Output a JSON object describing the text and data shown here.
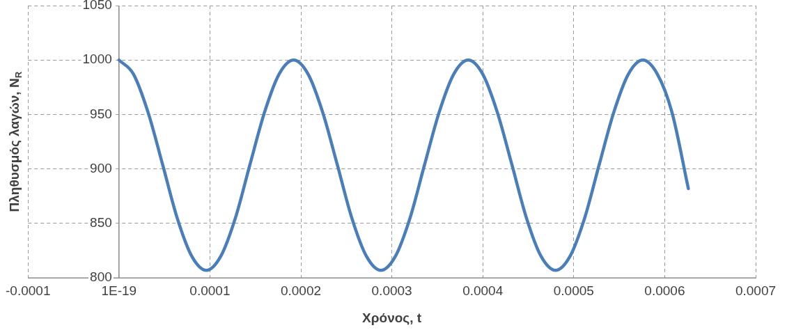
{
  "chart_data": {
    "type": "line",
    "xlabel": "Χρόνος, t",
    "ylabel": "Πληθυσμός λαγών, N$_{R}$",
    "x": [
      0,
      1.6e-05,
      3.2e-05,
      4.8e-05,
      6.4e-05,
      8e-05,
      9.6e-05,
      0.000112,
      0.000128,
      0.000144,
      0.00016,
      0.000176,
      0.000192,
      0.000208,
      0.000224,
      0.00024,
      0.000256,
      0.000272,
      0.000288,
      0.000304,
      0.00032,
      0.000336,
      0.000352,
      0.000368,
      0.000384,
      0.0004,
      0.000416,
      0.000432,
      0.000448,
      0.000464,
      0.00048,
      0.000496,
      0.000512,
      0.000528,
      0.000544,
      0.00056,
      0.000576,
      0.000592,
      0.000608,
      0.000626
    ],
    "series": [
      {
        "color": "#4a7ebb",
        "values": [
          1000,
          987,
          952,
          904,
          855,
          820,
          807,
          820,
          855,
          904,
          952,
          987,
          1000,
          987,
          952,
          904,
          855,
          820,
          807,
          820,
          855,
          904,
          952,
          987,
          1000,
          987,
          952,
          904,
          855,
          820,
          807,
          820,
          855,
          904,
          952,
          987,
          1000,
          987,
          952,
          882
        ]
      }
    ],
    "xlim": [
      -0.0001,
      0.0007
    ],
    "xticks": [
      -0.0001,
      {
        "value": 0,
        "label": "1E-19"
      },
      0.0001,
      0.0002,
      0.0003,
      0.0004,
      0.0005,
      0.0006,
      0.0007
    ],
    "ylim": [
      800,
      1050
    ],
    "yticks": [
      800,
      850,
      900,
      950,
      1000,
      1050
    ],
    "grid": true,
    "legend": false,
    "marker": "none",
    "line_style": "solid"
  }
}
